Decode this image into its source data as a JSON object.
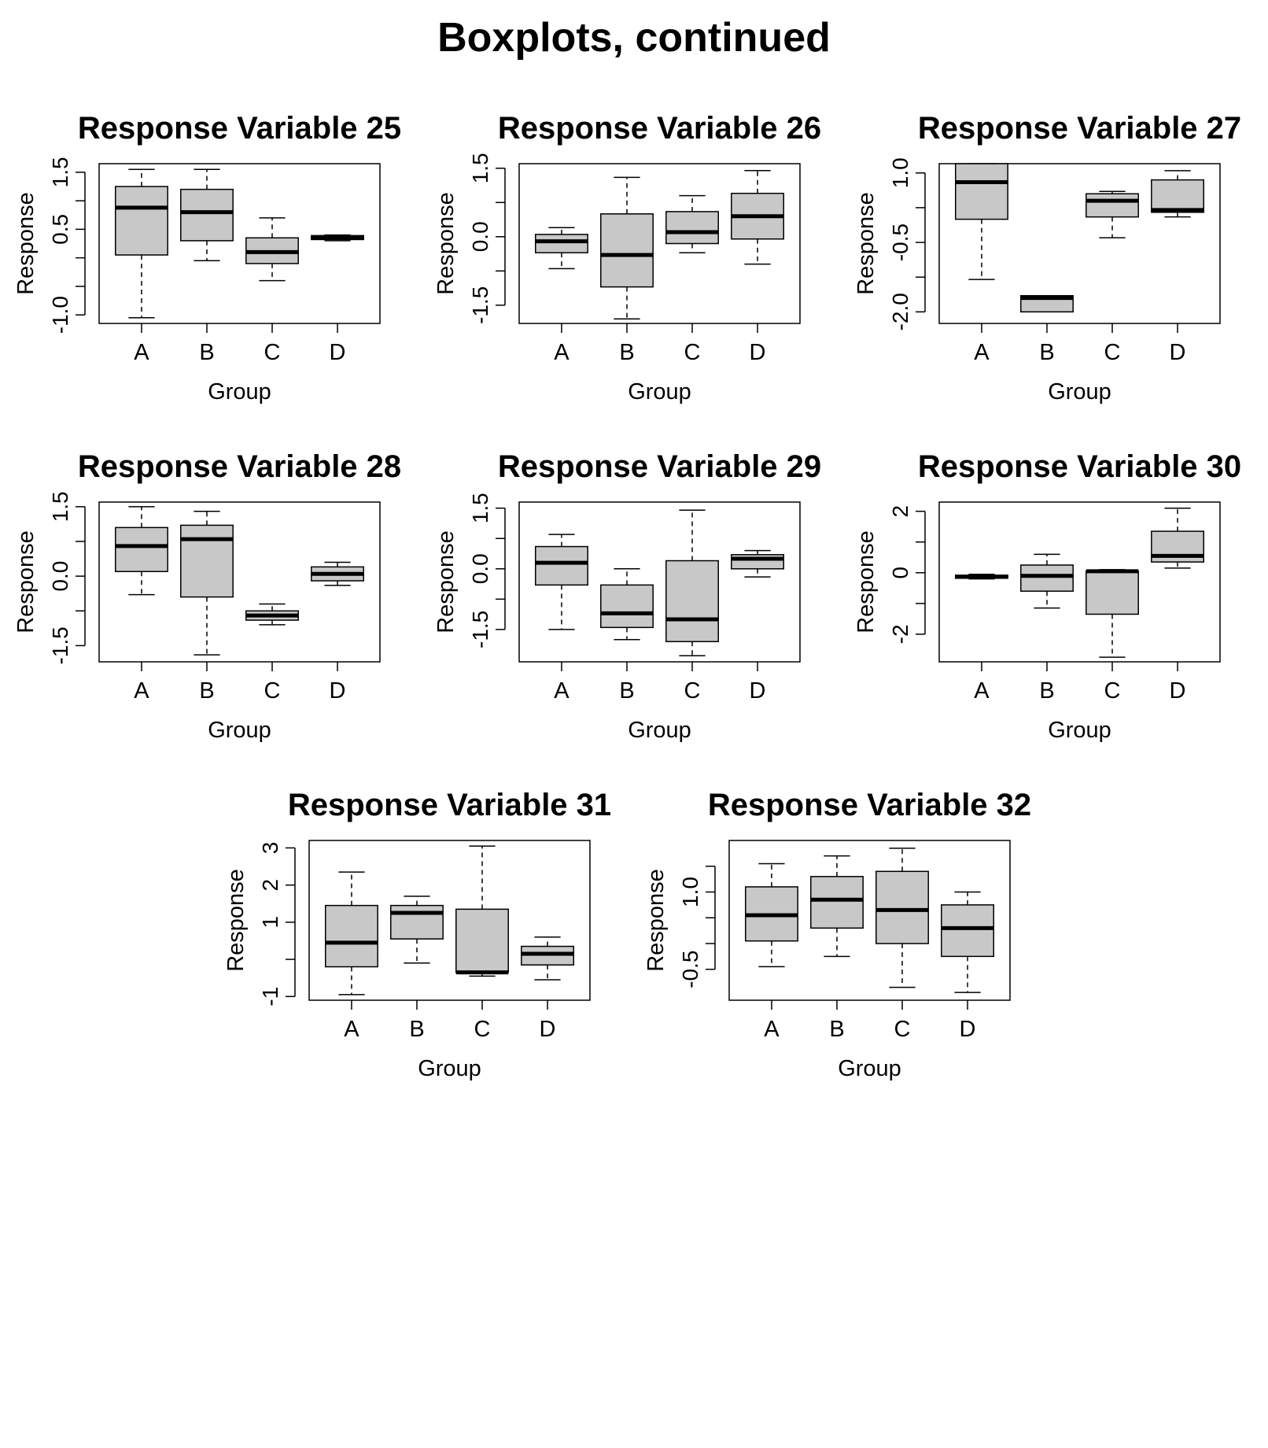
{
  "page_title": "Boxplots, continued",
  "colors": {
    "box_fill": "#c8c8c8",
    "line": "#000000",
    "background": "#ffffff"
  },
  "chart_data": [
    {
      "type": "boxplot",
      "title": "Response Variable 25",
      "xlabel": "Group",
      "ylabel": "Response",
      "categories": [
        "A",
        "B",
        "C",
        "D"
      ],
      "ylim": [
        -1.15,
        1.65
      ],
      "yticks": [
        -1.0,
        -0.5,
        0.0,
        0.5,
        1.0,
        1.5
      ],
      "yticklabels": [
        "-1.0",
        "",
        "",
        "0.5",
        "",
        "1.5"
      ],
      "boxes": [
        {
          "wlo": -1.05,
          "q1": 0.05,
          "med": 0.88,
          "q3": 1.25,
          "whi": 1.55
        },
        {
          "wlo": -0.05,
          "q1": 0.3,
          "med": 0.8,
          "q3": 1.2,
          "whi": 1.55
        },
        {
          "wlo": -0.4,
          "q1": -0.1,
          "med": 0.1,
          "q3": 0.35,
          "whi": 0.7
        },
        {
          "wlo": 0.3,
          "q1": 0.32,
          "med": 0.36,
          "q3": 0.39,
          "whi": 0.4
        }
      ]
    },
    {
      "type": "boxplot",
      "title": "Response Variable 26",
      "xlabel": "Group",
      "ylabel": "Response",
      "categories": [
        "A",
        "B",
        "C",
        "D"
      ],
      "ylim": [
        -1.9,
        1.6
      ],
      "yticks": [
        -1.5,
        -0.75,
        0.0,
        0.75,
        1.5
      ],
      "yticklabels": [
        "-1.5",
        "",
        "0.0",
        "",
        "1.5"
      ],
      "boxes": [
        {
          "wlo": -0.7,
          "q1": -0.35,
          "med": -0.1,
          "q3": 0.05,
          "whi": 0.2
        },
        {
          "wlo": -1.8,
          "q1": -1.1,
          "med": -0.4,
          "q3": 0.5,
          "whi": 1.3
        },
        {
          "wlo": -0.35,
          "q1": -0.15,
          "med": 0.1,
          "q3": 0.55,
          "whi": 0.9
        },
        {
          "wlo": -0.6,
          "q1": -0.05,
          "med": 0.45,
          "q3": 0.95,
          "whi": 1.45
        }
      ]
    },
    {
      "type": "boxplot",
      "title": "Response Variable 27",
      "xlabel": "Group",
      "ylabel": "Response",
      "categories": [
        "A",
        "B",
        "C",
        "D"
      ],
      "ylim": [
        -2.25,
        1.2
      ],
      "yticks": [
        -2.0,
        -1.25,
        -0.5,
        0.25,
        1.0
      ],
      "yticklabels": [
        "-2.0",
        "",
        "-0.5",
        "",
        "1.0"
      ],
      "boxes": [
        {
          "wlo": -1.3,
          "q1": 0.0,
          "med": 0.8,
          "q3": 1.2,
          "whi": 1.2
        },
        {
          "wlo": -2.0,
          "q1": -2.0,
          "med": -1.7,
          "q3": -1.65,
          "whi": -1.65
        },
        {
          "wlo": -0.4,
          "q1": 0.05,
          "med": 0.4,
          "q3": 0.55,
          "whi": 0.6
        },
        {
          "wlo": 0.05,
          "q1": 0.15,
          "med": 0.2,
          "q3": 0.85,
          "whi": 1.05
        }
      ]
    },
    {
      "type": "boxplot",
      "title": "Response Variable 28",
      "xlabel": "Group",
      "ylabel": "Response",
      "categories": [
        "A",
        "B",
        "C",
        "D"
      ],
      "ylim": [
        -1.85,
        1.6
      ],
      "yticks": [
        -1.5,
        -0.75,
        0.0,
        0.75,
        1.5
      ],
      "yticklabels": [
        "-1.5",
        "",
        "0.0",
        "",
        "1.5"
      ],
      "boxes": [
        {
          "wlo": -0.4,
          "q1": 0.1,
          "med": 0.65,
          "q3": 1.05,
          "whi": 1.5
        },
        {
          "wlo": -1.7,
          "q1": -0.45,
          "med": 0.8,
          "q3": 1.1,
          "whi": 1.4
        },
        {
          "wlo": -1.05,
          "q1": -0.95,
          "med": -0.85,
          "q3": -0.75,
          "whi": -0.6
        },
        {
          "wlo": -0.2,
          "q1": -0.1,
          "med": 0.05,
          "q3": 0.2,
          "whi": 0.3
        }
      ]
    },
    {
      "type": "boxplot",
      "title": "Response Variable 29",
      "xlabel": "Group",
      "ylabel": "Response",
      "categories": [
        "A",
        "B",
        "C",
        "D"
      ],
      "ylim": [
        -2.3,
        1.65
      ],
      "yticks": [
        -1.5,
        -0.75,
        0.0,
        0.75,
        1.5
      ],
      "yticklabels": [
        "-1.5",
        "",
        "0.0",
        "",
        "1.5"
      ],
      "boxes": [
        {
          "wlo": -1.5,
          "q1": -0.4,
          "med": 0.15,
          "q3": 0.55,
          "whi": 0.85
        },
        {
          "wlo": -1.75,
          "q1": -1.45,
          "med": -1.1,
          "q3": -0.4,
          "whi": 0.0
        },
        {
          "wlo": -2.15,
          "q1": -1.8,
          "med": -1.25,
          "q3": 0.2,
          "whi": 1.45
        },
        {
          "wlo": -0.2,
          "q1": 0.0,
          "med": 0.25,
          "q3": 0.35,
          "whi": 0.45
        }
      ]
    },
    {
      "type": "boxplot",
      "title": "Response Variable 30",
      "xlabel": "Group",
      "ylabel": "Response",
      "categories": [
        "A",
        "B",
        "C",
        "D"
      ],
      "ylim": [
        -2.9,
        2.3
      ],
      "yticks": [
        -2,
        -1,
        0,
        1,
        2
      ],
      "yticklabels": [
        "-2",
        "",
        "0",
        "",
        "2"
      ],
      "boxes": [
        {
          "wlo": -0.2,
          "q1": -0.18,
          "med": -0.13,
          "q3": -0.08,
          "whi": -0.05
        },
        {
          "wlo": -1.15,
          "q1": -0.6,
          "med": -0.1,
          "q3": 0.25,
          "whi": 0.6
        },
        {
          "wlo": -2.75,
          "q1": -1.35,
          "med": 0.05,
          "q3": 0.05,
          "whi": 0.1
        },
        {
          "wlo": 0.15,
          "q1": 0.35,
          "med": 0.55,
          "q3": 1.35,
          "whi": 2.1
        }
      ]
    },
    {
      "type": "boxplot",
      "title": "Response Variable 31",
      "xlabel": "Group",
      "ylabel": "Response",
      "categories": [
        "A",
        "B",
        "C",
        "D"
      ],
      "ylim": [
        -1.1,
        3.2
      ],
      "yticks": [
        -1,
        0,
        1,
        2,
        3
      ],
      "yticklabels": [
        "-1",
        "",
        "1",
        "2",
        "3"
      ],
      "boxes": [
        {
          "wlo": -0.95,
          "q1": -0.2,
          "med": 0.45,
          "q3": 1.45,
          "whi": 2.35
        },
        {
          "wlo": -0.1,
          "q1": 0.55,
          "med": 1.25,
          "q3": 1.45,
          "whi": 1.7
        },
        {
          "wlo": -0.45,
          "q1": -0.35,
          "med": -0.35,
          "q3": 1.35,
          "whi": 3.05
        },
        {
          "wlo": -0.55,
          "q1": -0.15,
          "med": 0.15,
          "q3": 0.35,
          "whi": 0.6
        }
      ]
    },
    {
      "type": "boxplot",
      "title": "Response Variable 32",
      "xlabel": "Group",
      "ylabel": "Response",
      "categories": [
        "A",
        "B",
        "C",
        "D"
      ],
      "ylim": [
        -1.1,
        2.0
      ],
      "yticks": [
        -0.5,
        0.0,
        0.5,
        1.0,
        1.5
      ],
      "yticklabels": [
        "-0.5",
        "",
        "",
        "1.0",
        ""
      ],
      "boxes": [
        {
          "wlo": -0.45,
          "q1": 0.05,
          "med": 0.55,
          "q3": 1.1,
          "whi": 1.55
        },
        {
          "wlo": -0.25,
          "q1": 0.3,
          "med": 0.85,
          "q3": 1.3,
          "whi": 1.7
        },
        {
          "wlo": -0.85,
          "q1": 0.0,
          "med": 0.65,
          "q3": 1.4,
          "whi": 1.85
        },
        {
          "wlo": -0.95,
          "q1": -0.25,
          "med": 0.3,
          "q3": 0.75,
          "whi": 1.0
        }
      ]
    }
  ]
}
